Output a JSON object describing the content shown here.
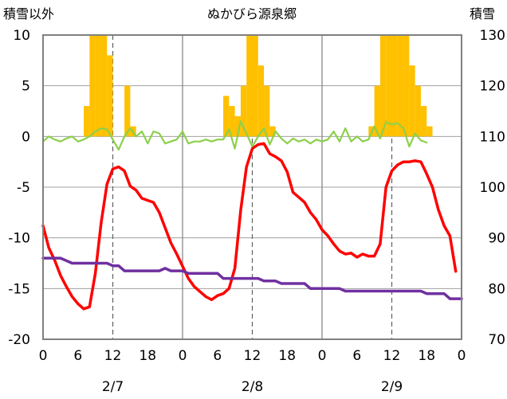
{
  "chart_data": {
    "type": "bar+line",
    "title": "ぬかびら源泉郷",
    "ylabel_left": "積雪以外",
    "ylabel_right": "積雪",
    "ylim_left": [
      -20,
      10
    ],
    "ylim_right": [
      70,
      130
    ],
    "yticks_left": [
      "10",
      "5",
      "0",
      "-5",
      "-10",
      "-15",
      "-20"
    ],
    "yticks_right": [
      "130",
      "120",
      "110",
      "100",
      "90",
      "80",
      "70"
    ],
    "xticks": [
      "0",
      "6",
      "12",
      "18",
      "0",
      "6",
      "12",
      "18",
      "0",
      "6",
      "12",
      "18",
      "0"
    ],
    "dates": [
      "2/7",
      "2/8",
      "2/9"
    ],
    "grid": "dashed lines at 12h, solid at day boundaries, horizontal at each y tick",
    "x_hours": "hours since 2/7 00:00",
    "series": [
      {
        "kind": "bar",
        "axis": "left",
        "color": "#FFC000",
        "x": [
          7,
          8,
          9,
          10,
          11,
          12,
          13,
          14,
          15,
          16,
          31,
          32,
          33,
          34,
          35,
          36,
          37,
          38,
          39,
          56,
          57,
          58,
          59,
          60,
          61,
          62,
          63,
          64,
          65,
          66
        ],
        "values": [
          3,
          10,
          10,
          10,
          8,
          0,
          0,
          5,
          1,
          0,
          4,
          3,
          2,
          5,
          10,
          10,
          7,
          5,
          1,
          1,
          5,
          10,
          10,
          10,
          10,
          10,
          7,
          5,
          3,
          1
        ]
      },
      {
        "kind": "line",
        "axis": "left",
        "color": "#8CD04A",
        "x": [
          0,
          1,
          2,
          3,
          4,
          5,
          6,
          7,
          8,
          9,
          10,
          11,
          12,
          13,
          14,
          15,
          16,
          17,
          18,
          19,
          20,
          21,
          22,
          23,
          24,
          25,
          26,
          27,
          28,
          29,
          30,
          31,
          32,
          33,
          34,
          35,
          36,
          37,
          38,
          39,
          40,
          41,
          42,
          43,
          44,
          45,
          46,
          47,
          48,
          49,
          50,
          51,
          52,
          53,
          54,
          55,
          56,
          57,
          58,
          59,
          60,
          61,
          62,
          63,
          64,
          65,
          66
        ],
        "values": [
          -0.5,
          0,
          -0.3,
          -0.5,
          -0.2,
          0,
          -0.5,
          -0.3,
          0,
          0.5,
          0.8,
          0.7,
          -0.3,
          -1.3,
          0,
          0.8,
          0,
          0.5,
          -0.7,
          0.5,
          0.3,
          -0.7,
          -0.5,
          -0.3,
          0.5,
          -0.7,
          -0.5,
          -0.5,
          -0.3,
          -0.5,
          -0.3,
          -0.3,
          0.7,
          -1.2,
          1.5,
          0.3,
          -1,
          0,
          0.8,
          -0.8,
          0.5,
          -0.2,
          -0.7,
          -0.2,
          -0.5,
          -0.3,
          -0.7,
          -0.3,
          -0.5,
          -0.3,
          0.5,
          -0.5,
          0.8,
          -0.5,
          0,
          -0.5,
          -0.3,
          1,
          -0.2,
          1.4,
          1.2,
          1.3,
          0.8,
          -1,
          0.3,
          -0.4,
          -0.6
        ]
      },
      {
        "kind": "line",
        "axis": "left",
        "color": "#FF0000",
        "x": [
          0,
          1,
          2,
          3,
          4,
          5,
          6,
          7,
          8,
          9,
          10,
          11,
          12,
          13,
          14,
          15,
          16,
          17,
          18,
          19,
          20,
          21,
          22,
          23,
          24,
          25,
          26,
          27,
          28,
          29,
          30,
          31,
          32,
          33,
          34,
          35,
          36,
          37,
          38,
          39,
          40,
          41,
          42,
          43,
          44,
          45,
          46,
          47,
          48,
          49,
          50,
          51,
          52,
          53,
          54,
          55,
          56,
          57,
          58,
          59,
          60,
          61,
          62,
          63,
          64,
          65,
          66,
          67,
          68,
          69,
          70,
          71
        ],
        "values": [
          -8.8,
          -11,
          -12.2,
          -13.7,
          -14.8,
          -15.8,
          -16.5,
          -17,
          -16.8,
          -13.5,
          -8.5,
          -4.7,
          -3.2,
          -3,
          -3.4,
          -4.9,
          -5.3,
          -6.1,
          -6.3,
          -6.5,
          -7.5,
          -9,
          -10.5,
          -11.6,
          -12.8,
          -14,
          -14.8,
          -15.3,
          -15.8,
          -16.1,
          -15.7,
          -15.5,
          -15,
          -13,
          -7.3,
          -3,
          -1.2,
          -0.8,
          -0.7,
          -1.7,
          -2,
          -2.4,
          -3.5,
          -5.5,
          -6,
          -6.5,
          -7.5,
          -8.2,
          -9.2,
          -9.8,
          -10.6,
          -11.3,
          -11.6,
          -11.5,
          -11.9,
          -11.6,
          -11.8,
          -11.8,
          -10.6,
          -5,
          -3.4,
          -2.8,
          -2.5,
          -2.5,
          -2.4,
          -2.5,
          -3.7,
          -5,
          -7.2,
          -8.8,
          -9.8,
          -13.3
        ]
      },
      {
        "kind": "line",
        "axis": "right",
        "color": "#7030A0",
        "x": [
          0,
          3,
          4,
          5,
          11,
          12,
          13,
          14,
          15,
          16,
          20,
          21,
          22,
          23,
          24,
          25,
          26,
          27,
          28,
          29,
          30,
          31,
          32,
          33,
          34,
          35,
          36,
          37,
          38,
          39,
          40,
          41,
          42,
          43,
          44,
          45,
          46,
          47,
          48,
          49,
          50,
          51,
          52,
          53,
          54,
          55,
          56,
          57,
          58,
          59,
          60,
          61,
          62,
          63,
          64,
          65,
          66,
          67,
          68,
          69,
          70,
          71,
          72
        ],
        "values": [
          86,
          86,
          85.5,
          85,
          85,
          84.5,
          84.5,
          83.5,
          83.5,
          83.5,
          83.5,
          84,
          83.5,
          83.5,
          83.5,
          83,
          83,
          83,
          83,
          83,
          83,
          82,
          82,
          82,
          82,
          82,
          82,
          82,
          81.5,
          81.5,
          81.5,
          81,
          81,
          81,
          81,
          81,
          80,
          80,
          80,
          80,
          80,
          80,
          79.5,
          79.5,
          79.5,
          79.5,
          79.5,
          79.5,
          79.5,
          79.5,
          79.5,
          79.5,
          79.5,
          79.5,
          79.5,
          79.5,
          79,
          79,
          79,
          79,
          78,
          78,
          78
        ]
      }
    ]
  }
}
